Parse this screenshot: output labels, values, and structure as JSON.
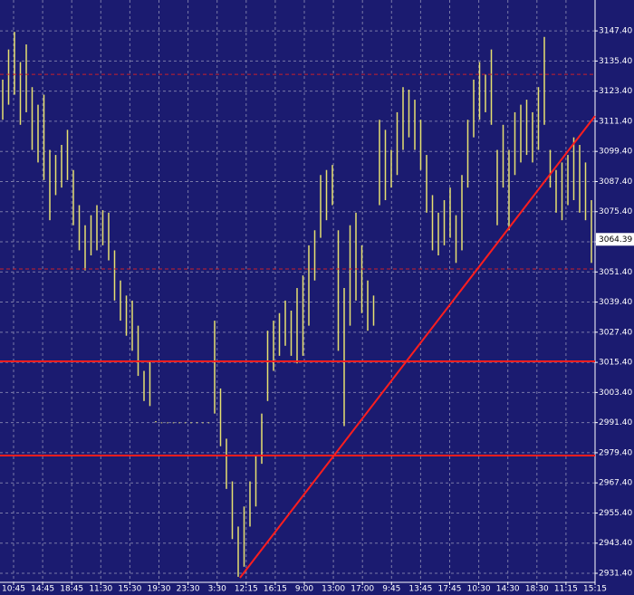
{
  "chart_data": {
    "type": "range_bar",
    "x_labels": [
      "10:45",
      "14:45",
      "18:45",
      "11:30",
      "15:30",
      "19:30",
      "23:30",
      "3:30",
      "12:15",
      "16:15",
      "9:00",
      "13:00",
      "17:00",
      "9:45",
      "13:45",
      "17:45",
      "10:30",
      "14:30",
      "18:30",
      "11:15",
      "15:15"
    ],
    "high": [
      3128,
      3140,
      3147,
      3135,
      3142,
      3125,
      3118,
      3122,
      3100,
      3098,
      3102,
      3108,
      3092,
      3078,
      3070,
      3074,
      3078,
      3076,
      3075,
      3060,
      3048,
      3042,
      3040,
      3030,
      3012,
      3016,
      2992,
      2991.5,
      2991.5,
      2991.5,
      2991.5,
      2991.5,
      2991.5,
      2991.5,
      2991.5,
      2991.5,
      3032,
      3005,
      2985,
      2968,
      2950,
      2958,
      2968,
      2978,
      2995,
      3028,
      3032,
      3035,
      3040,
      3036,
      3045,
      3050,
      3062,
      3068,
      3090,
      3092,
      3094,
      3068,
      3045,
      3070,
      3075,
      3062,
      3048,
      3042,
      3112,
      3108,
      3100,
      3115,
      3125,
      3124,
      3120,
      3112,
      3098,
      3082,
      3075,
      3080,
      3085,
      3074,
      3090,
      3112,
      3128,
      3135,
      3130,
      3140,
      3100,
      3110,
      3100,
      3115,
      3118,
      3120,
      3115,
      3125,
      3145,
      3100,
      3092,
      3095,
      3098,
      3105,
      3102,
      3095,
      3080
    ],
    "low": [
      3112,
      3118,
      3122,
      3110,
      3115,
      3100,
      3095,
      3088,
      3072,
      3082,
      3085,
      3088,
      3070,
      3060,
      3052,
      3058,
      3060,
      3062,
      3056,
      3040,
      3032,
      3026,
      3020,
      3010,
      3000,
      2998,
      2991.5,
      2991.2,
      2991.2,
      2991.2,
      2991.2,
      2991.2,
      2991.2,
      2991.2,
      2991.2,
      2991.2,
      2995,
      2982,
      2965,
      2945,
      2930,
      2934,
      2950,
      2958,
      2975,
      3000,
      3012,
      3018,
      3022,
      3018,
      3015,
      3018,
      3030,
      3048,
      3065,
      3072,
      3078,
      3020,
      2990,
      3030,
      3040,
      3035,
      3028,
      3030,
      3078,
      3080,
      3085,
      3090,
      3100,
      3105,
      3100,
      3092,
      3075,
      3060,
      3058,
      3062,
      3065,
      3055,
      3060,
      3085,
      3105,
      3112,
      3115,
      3110,
      3070,
      3085,
      3068,
      3090,
      3095,
      3098,
      3095,
      3100,
      3110,
      3085,
      3075,
      3072,
      3078,
      3080,
      3075,
      3072,
      3055
    ],
    "color": "#e6e070",
    "ylim": [
      2927.8,
      3159.7
    ],
    "yticks": [
      {
        "value": 2931.4,
        "label": "2931.40"
      },
      {
        "value": 2943.4,
        "label": "2943.40"
      },
      {
        "value": 2955.4,
        "label": "2955.40"
      },
      {
        "value": 2967.4,
        "label": "2967.40"
      },
      {
        "value": 2979.4,
        "label": "2979.40"
      },
      {
        "value": 2991.4,
        "label": "2991.40"
      },
      {
        "value": 3003.4,
        "label": "3003.40"
      },
      {
        "value": 3015.4,
        "label": "3015.40"
      },
      {
        "value": 3027.4,
        "label": "3027.40"
      },
      {
        "value": 3039.4,
        "label": "3039.40"
      },
      {
        "value": 3051.4,
        "label": "3051.40"
      },
      {
        "value": 3063.4,
        "label": "3063.40"
      },
      {
        "value": 3075.4,
        "label": "3075.40"
      },
      {
        "value": 3087.4,
        "label": "3087.40"
      },
      {
        "value": 3099.4,
        "label": "3099.40"
      },
      {
        "value": 3111.4,
        "label": "3111.40"
      },
      {
        "value": 3123.4,
        "label": "3123.40"
      },
      {
        "value": 3135.4,
        "label": "3135.40"
      },
      {
        "value": 3147.4,
        "label": "3147.40"
      }
    ],
    "grid": true,
    "last_price": 3064.39,
    "levels": [
      {
        "value": 3130.1,
        "style": "dashed",
        "color": "#c8202a"
      },
      {
        "value": 3052.6,
        "style": "dashed",
        "color": "#c8202a"
      },
      {
        "value": 3015.8,
        "style": "solid",
        "color": "#ff1e1e"
      },
      {
        "value": 2978.3,
        "style": "solid",
        "color": "#ff1e1e"
      }
    ],
    "trendline": {
      "x": [
        40.3,
        100.6
      ],
      "y": [
        2929.6,
        3113.5
      ],
      "color": "#ff1e1e"
    }
  }
}
